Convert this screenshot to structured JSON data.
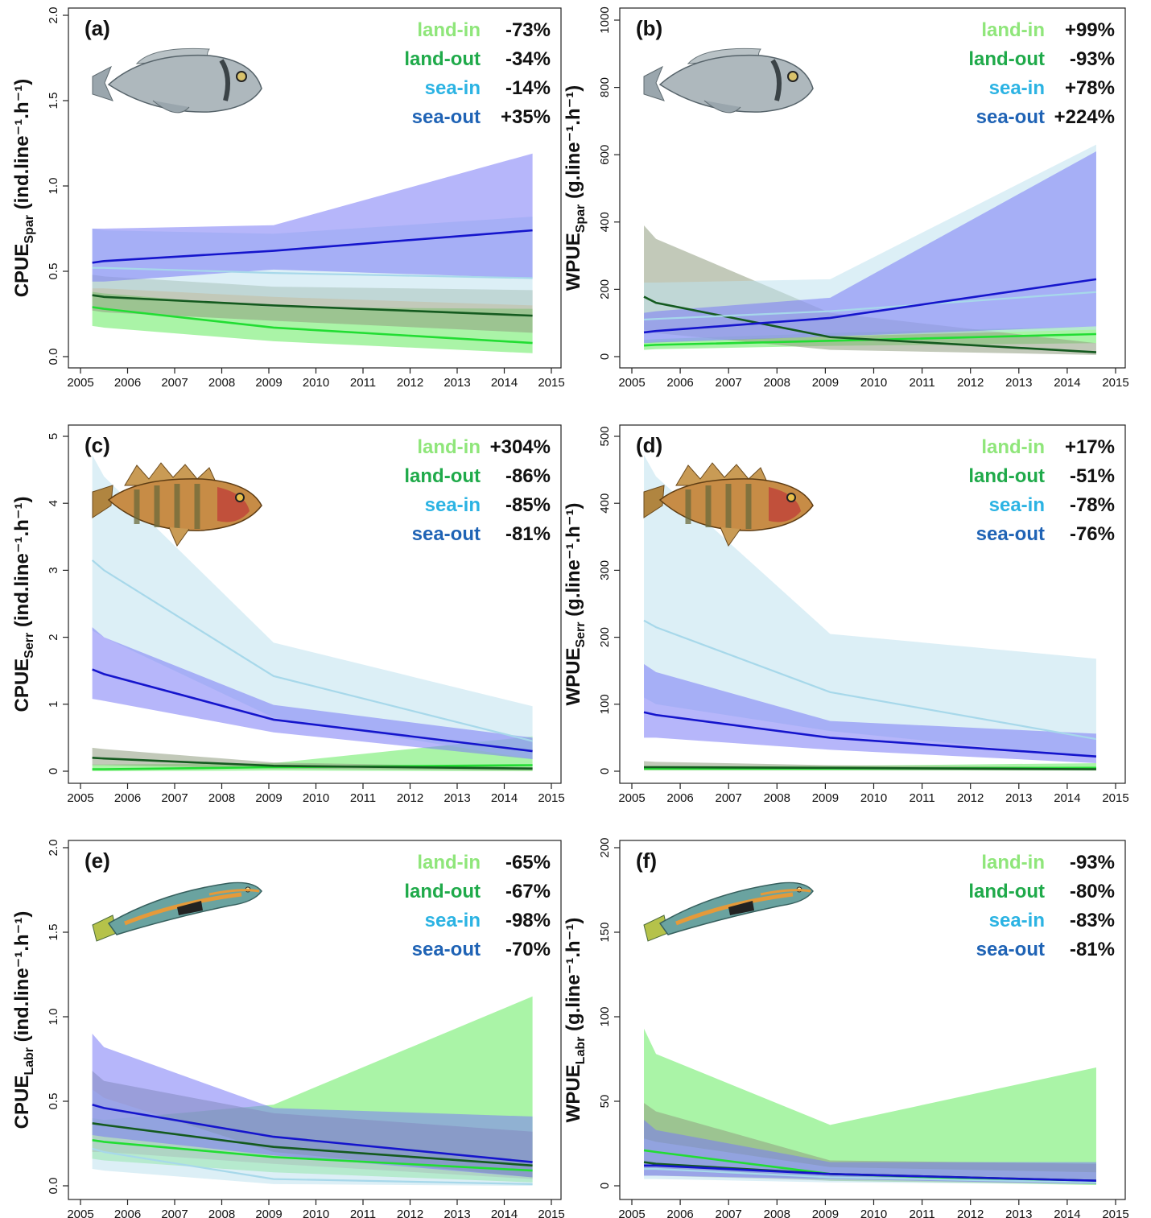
{
  "figure": {
    "colors": {
      "land-in": "#8fe67a",
      "land-out": "#1faa4a",
      "sea-in": "#2bb3e3",
      "sea-out": "#1f63b5",
      "line_land_in": "#22dd33",
      "line_land_out": "#145a1f",
      "line_sea_in": "#a7d8ea",
      "line_sea_out": "#1515cc",
      "band_land_in": "#8ef08a",
      "band_land_out": "#8f9c80",
      "band_sea_in": "#bfe2ee",
      "band_sea_out": "#7a7af5"
    },
    "series_names": [
      "land-in",
      "land-out",
      "sea-in",
      "sea-out"
    ]
  },
  "chart_data": [
    {
      "panel": "(a)",
      "type": "line",
      "icon": "sea-bream-fish-icon",
      "ylabel_main": "CPUE",
      "ylabel_sub": "Spar",
      "ylabel_unit": " (ind.line⁻¹.h⁻¹)",
      "xlim": [
        2005,
        2015
      ],
      "ylim": [
        0,
        2.0
      ],
      "xticks": [
        "2005",
        "2006",
        "2007",
        "2008",
        "2009",
        "2010",
        "2011",
        "2012",
        "2013",
        "2014",
        "2015"
      ],
      "yticks": [
        "0.0",
        "0.5",
        "1.0",
        "1.5",
        "2.0"
      ],
      "changes": [
        "-73%",
        "-34%",
        "-14%",
        "+35%"
      ],
      "x": [
        2005.25,
        2005.5,
        2009.1,
        2014.6
      ],
      "series": [
        {
          "name": "land-in",
          "values": [
            0.29,
            0.28,
            0.17,
            0.08
          ],
          "lower": [
            0.18,
            0.17,
            0.09,
            0.02
          ],
          "upper": [
            0.38,
            0.37,
            0.29,
            0.28
          ]
        },
        {
          "name": "land-out",
          "values": [
            0.36,
            0.35,
            0.3,
            0.24
          ],
          "lower": [
            0.27,
            0.26,
            0.21,
            0.14
          ],
          "upper": [
            0.48,
            0.47,
            0.41,
            0.39
          ]
        },
        {
          "name": "sea-in",
          "values": [
            0.52,
            0.52,
            0.49,
            0.46
          ],
          "lower": [
            0.4,
            0.4,
            0.35,
            0.3
          ],
          "upper": [
            0.75,
            0.74,
            0.72,
            0.82
          ]
        },
        {
          "name": "sea-out",
          "values": [
            0.55,
            0.56,
            0.62,
            0.74
          ],
          "lower": [
            0.44,
            0.44,
            0.51,
            0.46
          ],
          "upper": [
            0.75,
            0.75,
            0.77,
            1.19
          ]
        }
      ]
    },
    {
      "panel": "(b)",
      "type": "line",
      "icon": "sea-bream-fish-icon",
      "ylabel_main": "WPUE",
      "ylabel_sub": "Spar",
      "ylabel_unit": " (g.line⁻¹.h⁻¹)",
      "xlim": [
        2005,
        2015
      ],
      "ylim": [
        0,
        1000
      ],
      "xticks": [
        "2005",
        "2006",
        "2007",
        "2008",
        "2009",
        "2010",
        "2011",
        "2012",
        "2013",
        "2014",
        "2015"
      ],
      "yticks": [
        "0",
        "200",
        "400",
        "600",
        "800",
        "1000"
      ],
      "changes": [
        "+99%",
        "-93%",
        "+78%",
        "+224%"
      ],
      "x": [
        2005.25,
        2005.5,
        2009.1,
        2014.6
      ],
      "series": [
        {
          "name": "land-in",
          "values": [
            33,
            35,
            47,
            67
          ],
          "lower": [
            20,
            22,
            32,
            40
          ],
          "upper": [
            50,
            52,
            70,
            90
          ]
        },
        {
          "name": "land-out",
          "values": [
            178,
            160,
            58,
            13
          ],
          "lower": [
            80,
            70,
            20,
            5
          ],
          "upper": [
            390,
            350,
            130,
            40
          ]
        },
        {
          "name": "sea-in",
          "values": [
            110,
            112,
            135,
            192
          ],
          "lower": [
            40,
            45,
            60,
            80
          ],
          "upper": [
            220,
            220,
            230,
            630
          ]
        },
        {
          "name": "sea-out",
          "values": [
            72,
            76,
            115,
            230
          ],
          "lower": [
            40,
            42,
            60,
            90
          ],
          "upper": [
            130,
            135,
            175,
            610
          ]
        }
      ]
    },
    {
      "panel": "(c)",
      "type": "line",
      "icon": "comber-fish-icon",
      "ylabel_main": "CPUE",
      "ylabel_sub": "Serr",
      "ylabel_unit": " (ind.line⁻¹.h⁻¹)",
      "xlim": [
        2005,
        2015
      ],
      "ylim": [
        0,
        5
      ],
      "xticks": [
        "2005",
        "2006",
        "2007",
        "2008",
        "2009",
        "2010",
        "2011",
        "2012",
        "2013",
        "2014",
        "2015"
      ],
      "yticks": [
        "0",
        "1",
        "2",
        "3",
        "4",
        "5"
      ],
      "changes": [
        "+304%",
        "-86%",
        "-85%",
        "-81%"
      ],
      "x": [
        2005.25,
        2005.5,
        2009.1,
        2014.6
      ],
      "series": [
        {
          "name": "land-in",
          "values": [
            0.03,
            0.03,
            0.06,
            0.09
          ],
          "lower": [
            0.0,
            0.0,
            0.01,
            0.0
          ],
          "upper": [
            0.1,
            0.1,
            0.12,
            0.52
          ]
        },
        {
          "name": "land-out",
          "values": [
            0.2,
            0.19,
            0.08,
            0.04
          ],
          "lower": [
            0.09,
            0.09,
            0.04,
            0.01
          ],
          "upper": [
            0.35,
            0.33,
            0.13,
            0.06
          ]
        },
        {
          "name": "sea-in",
          "values": [
            3.15,
            3.0,
            1.42,
            0.45
          ],
          "lower": [
            2.1,
            2.0,
            0.8,
            0.18
          ],
          "upper": [
            4.72,
            4.4,
            1.92,
            0.97
          ]
        },
        {
          "name": "sea-out",
          "values": [
            1.52,
            1.45,
            0.77,
            0.3
          ],
          "lower": [
            1.08,
            1.05,
            0.58,
            0.18
          ],
          "upper": [
            2.15,
            2.0,
            0.99,
            0.5
          ]
        }
      ]
    },
    {
      "panel": "(d)",
      "type": "line",
      "icon": "comber-fish-icon",
      "ylabel_main": "WPUE",
      "ylabel_sub": "Serr",
      "ylabel_unit": " (g.line⁻¹.h⁻¹)",
      "xlim": [
        2005,
        2015
      ],
      "ylim": [
        0,
        500
      ],
      "xticks": [
        "2005",
        "2006",
        "2007",
        "2008",
        "2009",
        "2010",
        "2011",
        "2012",
        "2013",
        "2014",
        "2015"
      ],
      "yticks": [
        "0",
        "100",
        "200",
        "300",
        "400",
        "500"
      ],
      "changes": [
        "+17%",
        "-51%",
        "-78%",
        "-76%"
      ],
      "x": [
        2005.25,
        2005.5,
        2009.1,
        2014.6
      ],
      "series": [
        {
          "name": "land-in",
          "values": [
            4,
            4,
            4,
            5
          ],
          "lower": [
            1,
            1,
            1,
            1
          ],
          "upper": [
            8,
            8,
            8,
            12
          ]
        },
        {
          "name": "land-out",
          "values": [
            6,
            6,
            5,
            3
          ],
          "lower": [
            2,
            2,
            2,
            1
          ],
          "upper": [
            15,
            14,
            9,
            6
          ]
        },
        {
          "name": "sea-in",
          "values": [
            225,
            215,
            118,
            48
          ],
          "lower": [
            110,
            100,
            60,
            20
          ],
          "upper": [
            472,
            440,
            205,
            168
          ]
        },
        {
          "name": "sea-out",
          "values": [
            88,
            84,
            50,
            22
          ],
          "lower": [
            50,
            50,
            32,
            12
          ],
          "upper": [
            160,
            148,
            75,
            56
          ]
        }
      ]
    },
    {
      "panel": "(e)",
      "type": "line",
      "icon": "wrasse-fish-icon",
      "ylabel_main": "CPUE",
      "ylabel_sub": "Labr",
      "ylabel_unit": " (ind.line⁻¹.h⁻¹)",
      "xlim": [
        2005,
        2015
      ],
      "ylim": [
        0,
        2.0
      ],
      "xticks": [
        "2005",
        "2006",
        "2007",
        "2008",
        "2009",
        "2010",
        "2011",
        "2012",
        "2013",
        "2014",
        "2015"
      ],
      "yticks": [
        "0.0",
        "0.5",
        "1.0",
        "1.5",
        "2.0"
      ],
      "changes": [
        "-65%",
        "-67%",
        "-98%",
        "-70%"
      ],
      "x": [
        2005.25,
        2005.5,
        2009.1,
        2014.6
      ],
      "series": [
        {
          "name": "land-in",
          "values": [
            0.27,
            0.26,
            0.17,
            0.09
          ],
          "lower": [
            0.16,
            0.15,
            0.08,
            0.02
          ],
          "upper": [
            0.4,
            0.39,
            0.48,
            1.12
          ]
        },
        {
          "name": "land-out",
          "values": [
            0.37,
            0.36,
            0.23,
            0.12
          ],
          "lower": [
            0.2,
            0.2,
            0.13,
            0.04
          ],
          "upper": [
            0.68,
            0.62,
            0.43,
            0.32
          ]
        },
        {
          "name": "sea-in",
          "values": [
            0.22,
            0.2,
            0.04,
            0.01
          ],
          "lower": [
            0.1,
            0.09,
            0.01,
            0.0
          ],
          "upper": [
            0.57,
            0.52,
            0.2,
            0.05
          ]
        },
        {
          "name": "sea-out",
          "values": [
            0.48,
            0.46,
            0.29,
            0.14
          ],
          "lower": [
            0.3,
            0.29,
            0.18,
            0.05
          ],
          "upper": [
            0.9,
            0.82,
            0.46,
            0.41
          ]
        }
      ]
    },
    {
      "panel": "(f)",
      "type": "line",
      "icon": "wrasse-fish-icon",
      "ylabel_main": "WPUE",
      "ylabel_sub": "Labr",
      "ylabel_unit": " (g.line⁻¹.h⁻¹)",
      "xlim": [
        2005,
        2015
      ],
      "ylim": [
        0,
        200
      ],
      "xticks": [
        "2005",
        "2006",
        "2007",
        "2008",
        "2009",
        "2010",
        "2011",
        "2012",
        "2013",
        "2014",
        "2015"
      ],
      "yticks": [
        "0",
        "50",
        "100",
        "150",
        "200"
      ],
      "changes": [
        "-93%",
        "-80%",
        "-83%",
        "-81%"
      ],
      "x": [
        2005.25,
        2005.5,
        2009.1,
        2014.6
      ],
      "series": [
        {
          "name": "land-in",
          "values": [
            21,
            20,
            7,
            2
          ],
          "lower": [
            10,
            10,
            3,
            0.5
          ],
          "upper": [
            93,
            78,
            36,
            70
          ]
        },
        {
          "name": "land-out",
          "values": [
            14,
            13,
            7,
            3
          ],
          "lower": [
            6,
            6,
            3,
            1
          ],
          "upper": [
            49,
            44,
            15,
            13
          ]
        },
        {
          "name": "sea-in",
          "values": [
            10,
            10,
            5,
            2
          ],
          "lower": [
            4,
            4,
            2,
            1
          ],
          "upper": [
            28,
            26,
            11,
            8
          ]
        },
        {
          "name": "sea-out",
          "values": [
            12,
            12,
            7,
            3
          ],
          "lower": [
            6,
            6,
            4,
            1
          ],
          "upper": [
            39,
            33,
            14,
            14
          ]
        }
      ]
    }
  ]
}
